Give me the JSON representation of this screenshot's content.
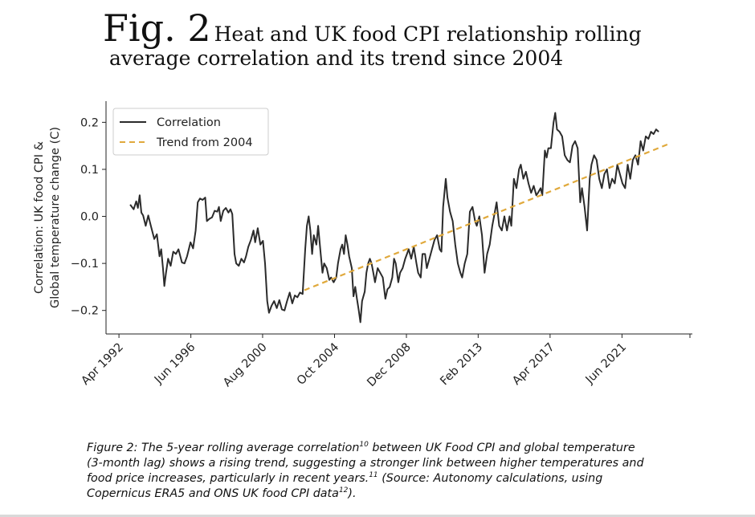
{
  "figure": {
    "label": "Fig. 2",
    "title_line1": "Heat and UK food CPI relationship rolling",
    "title_line2": "average correlation and its trend since 2004"
  },
  "caption": {
    "part1": "Figure 2: The 5-year rolling average correlation",
    "ref1": "10",
    "part2": " between UK Food CPI and global temperature (3-month lag) shows a rising trend, suggesting a stronger link between higher temperatures and food price increases, particularly in recent years.",
    "ref2": "11",
    "part3": " (Source: Autonomy calculations, using Copernicus ERA5 and ONS UK food CPI data",
    "ref3": "12",
    "part4": ")."
  },
  "chart_data": {
    "type": "line",
    "title": "",
    "xlabel": "",
    "ylabel_line1": "Correlation: UK food CPI &",
    "ylabel_line2": "Global temperature change (C)",
    "xlim": [
      1991.5,
      2025.5
    ],
    "ylim": [
      -0.25,
      0.245
    ],
    "yticks": [
      -0.2,
      -0.1,
      0.0,
      0.1,
      0.2
    ],
    "ytick_labels": [
      "−0.2",
      "−0.1",
      "0.0",
      "0.1",
      "0.2"
    ],
    "xticks": [
      1992.25,
      1996.42,
      2000.58,
      2004.75,
      2008.92,
      2013.08,
      2017.25,
      2021.42
    ],
    "xtick_labels": [
      "Apr 1992",
      "Jun 1996",
      "Aug 2000",
      "Oct 2004",
      "Dec 2008",
      "Feb 2013",
      "Apr 2017",
      "Jun 2021"
    ],
    "legend_position": "top-left",
    "series": [
      {
        "name": "Correlation",
        "color": "#2b2b2b",
        "style": "solid",
        "points": [
          [
            1992.9,
            0.025
          ],
          [
            1993.1,
            0.015
          ],
          [
            1993.25,
            0.032
          ],
          [
            1993.35,
            0.018
          ],
          [
            1993.45,
            0.045
          ],
          [
            1993.55,
            0.008
          ],
          [
            1993.65,
            0.002
          ],
          [
            1993.8,
            -0.02
          ],
          [
            1993.95,
            0.002
          ],
          [
            1994.1,
            -0.02
          ],
          [
            1994.3,
            -0.048
          ],
          [
            1994.45,
            -0.038
          ],
          [
            1994.6,
            -0.085
          ],
          [
            1994.7,
            -0.07
          ],
          [
            1994.8,
            -0.11
          ],
          [
            1994.88,
            -0.148
          ],
          [
            1994.98,
            -0.12
          ],
          [
            1995.1,
            -0.09
          ],
          [
            1995.25,
            -0.105
          ],
          [
            1995.4,
            -0.075
          ],
          [
            1995.55,
            -0.08
          ],
          [
            1995.7,
            -0.07
          ],
          [
            1995.9,
            -0.098
          ],
          [
            1996.05,
            -0.1
          ],
          [
            1996.2,
            -0.085
          ],
          [
            1996.4,
            -0.055
          ],
          [
            1996.55,
            -0.068
          ],
          [
            1996.7,
            -0.03
          ],
          [
            1996.82,
            0.03
          ],
          [
            1996.95,
            0.038
          ],
          [
            1997.1,
            0.035
          ],
          [
            1997.25,
            0.04
          ],
          [
            1997.35,
            -0.01
          ],
          [
            1997.5,
            -0.005
          ],
          [
            1997.65,
            -0.002
          ],
          [
            1997.8,
            0.012
          ],
          [
            1997.95,
            0.01
          ],
          [
            1998.05,
            0.02
          ],
          [
            1998.15,
            -0.01
          ],
          [
            1998.3,
            0.012
          ],
          [
            1998.45,
            0.018
          ],
          [
            1998.6,
            0.008
          ],
          [
            1998.72,
            0.015
          ],
          [
            1998.82,
            0.005
          ],
          [
            1998.95,
            -0.08
          ],
          [
            1999.05,
            -0.1
          ],
          [
            1999.2,
            -0.105
          ],
          [
            1999.35,
            -0.09
          ],
          [
            1999.5,
            -0.098
          ],
          [
            1999.62,
            -0.085
          ],
          [
            1999.75,
            -0.065
          ],
          [
            1999.9,
            -0.05
          ],
          [
            2000.05,
            -0.03
          ],
          [
            2000.15,
            -0.055
          ],
          [
            2000.3,
            -0.025
          ],
          [
            2000.45,
            -0.06
          ],
          [
            2000.6,
            -0.052
          ],
          [
            2000.72,
            -0.1
          ],
          [
            2000.85,
            -0.18
          ],
          [
            2000.95,
            -0.205
          ],
          [
            2001.1,
            -0.19
          ],
          [
            2001.25,
            -0.18
          ],
          [
            2001.4,
            -0.195
          ],
          [
            2001.55,
            -0.178
          ],
          [
            2001.7,
            -0.198
          ],
          [
            2001.85,
            -0.2
          ],
          [
            2002.0,
            -0.18
          ],
          [
            2002.15,
            -0.162
          ],
          [
            2002.3,
            -0.185
          ],
          [
            2002.45,
            -0.168
          ],
          [
            2002.6,
            -0.172
          ],
          [
            2002.75,
            -0.162
          ],
          [
            2002.9,
            -0.165
          ],
          [
            2003.05,
            -0.07
          ],
          [
            2003.15,
            -0.02
          ],
          [
            2003.25,
            0.0
          ],
          [
            2003.35,
            -0.03
          ],
          [
            2003.45,
            -0.08
          ],
          [
            2003.55,
            -0.04
          ],
          [
            2003.7,
            -0.06
          ],
          [
            2003.8,
            -0.02
          ],
          [
            2003.95,
            -0.08
          ],
          [
            2004.05,
            -0.12
          ],
          [
            2004.15,
            -0.1
          ],
          [
            2004.3,
            -0.11
          ],
          [
            2004.45,
            -0.135
          ],
          [
            2004.55,
            -0.13
          ],
          [
            2004.7,
            -0.14
          ],
          [
            2004.85,
            -0.13
          ],
          [
            2004.95,
            -0.1
          ],
          [
            2005.1,
            -0.07
          ],
          [
            2005.2,
            -0.06
          ],
          [
            2005.3,
            -0.08
          ],
          [
            2005.4,
            -0.04
          ],
          [
            2005.5,
            -0.06
          ],
          [
            2005.6,
            -0.085
          ],
          [
            2005.75,
            -0.11
          ],
          [
            2005.85,
            -0.17
          ],
          [
            2005.95,
            -0.15
          ],
          [
            2006.05,
            -0.175
          ],
          [
            2006.15,
            -0.198
          ],
          [
            2006.25,
            -0.225
          ],
          [
            2006.35,
            -0.18
          ],
          [
            2006.5,
            -0.16
          ],
          [
            2006.6,
            -0.12
          ],
          [
            2006.7,
            -0.1
          ],
          [
            2006.8,
            -0.09
          ],
          [
            2006.9,
            -0.1
          ],
          [
            2007.0,
            -0.12
          ],
          [
            2007.1,
            -0.14
          ],
          [
            2007.25,
            -0.11
          ],
          [
            2007.4,
            -0.12
          ],
          [
            2007.55,
            -0.13
          ],
          [
            2007.7,
            -0.175
          ],
          [
            2007.82,
            -0.155
          ],
          [
            2007.95,
            -0.15
          ],
          [
            2008.1,
            -0.13
          ],
          [
            2008.2,
            -0.09
          ],
          [
            2008.3,
            -0.1
          ],
          [
            2008.45,
            -0.14
          ],
          [
            2008.55,
            -0.12
          ],
          [
            2008.7,
            -0.11
          ],
          [
            2008.85,
            -0.09
          ],
          [
            2008.95,
            -0.08
          ],
          [
            2009.05,
            -0.07
          ],
          [
            2009.2,
            -0.09
          ],
          [
            2009.35,
            -0.065
          ],
          [
            2009.5,
            -0.1
          ],
          [
            2009.6,
            -0.12
          ],
          [
            2009.75,
            -0.13
          ],
          [
            2009.85,
            -0.08
          ],
          [
            2010.0,
            -0.08
          ],
          [
            2010.1,
            -0.11
          ],
          [
            2010.25,
            -0.09
          ],
          [
            2010.4,
            -0.07
          ],
          [
            2010.55,
            -0.05
          ],
          [
            2010.7,
            -0.04
          ],
          [
            2010.85,
            -0.07
          ],
          [
            2010.95,
            -0.075
          ],
          [
            2011.05,
            0.02
          ],
          [
            2011.2,
            0.08
          ],
          [
            2011.3,
            0.04
          ],
          [
            2011.45,
            0.01
          ],
          [
            2011.6,
            -0.01
          ],
          [
            2011.75,
            -0.06
          ],
          [
            2011.9,
            -0.1
          ],
          [
            2012.05,
            -0.12
          ],
          [
            2012.15,
            -0.13
          ],
          [
            2012.3,
            -0.1
          ],
          [
            2012.45,
            -0.08
          ],
          [
            2012.6,
            0.01
          ],
          [
            2012.75,
            0.02
          ],
          [
            2012.9,
            -0.01
          ],
          [
            2013.0,
            -0.02
          ],
          [
            2013.15,
            0.0
          ],
          [
            2013.3,
            -0.04
          ],
          [
            2013.45,
            -0.12
          ],
          [
            2013.6,
            -0.08
          ],
          [
            2013.75,
            -0.06
          ],
          [
            2013.9,
            -0.02
          ],
          [
            2014.0,
            0.0
          ],
          [
            2014.15,
            0.03
          ],
          [
            2014.3,
            -0.02
          ],
          [
            2014.45,
            -0.03
          ],
          [
            2014.6,
            0.0
          ],
          [
            2014.75,
            -0.03
          ],
          [
            2014.9,
            0.0
          ],
          [
            2015.0,
            -0.02
          ],
          [
            2015.15,
            0.08
          ],
          [
            2015.3,
            0.06
          ],
          [
            2015.45,
            0.1
          ],
          [
            2015.55,
            0.11
          ],
          [
            2015.7,
            0.08
          ],
          [
            2015.85,
            0.095
          ],
          [
            2016.0,
            0.07
          ],
          [
            2016.15,
            0.05
          ],
          [
            2016.3,
            0.065
          ],
          [
            2016.45,
            0.045
          ],
          [
            2016.55,
            0.05
          ],
          [
            2016.7,
            0.06
          ],
          [
            2016.8,
            0.045
          ],
          [
            2016.95,
            0.14
          ],
          [
            2017.05,
            0.125
          ],
          [
            2017.15,
            0.145
          ],
          [
            2017.3,
            0.145
          ],
          [
            2017.45,
            0.2
          ],
          [
            2017.55,
            0.22
          ],
          [
            2017.65,
            0.185
          ],
          [
            2017.8,
            0.18
          ],
          [
            2017.95,
            0.17
          ],
          [
            2018.1,
            0.13
          ],
          [
            2018.25,
            0.12
          ],
          [
            2018.4,
            0.115
          ],
          [
            2018.55,
            0.15
          ],
          [
            2018.7,
            0.16
          ],
          [
            2018.85,
            0.145
          ],
          [
            2019.0,
            0.03
          ],
          [
            2019.1,
            0.06
          ],
          [
            2019.25,
            0.02
          ],
          [
            2019.4,
            -0.03
          ],
          [
            2019.55,
            0.08
          ],
          [
            2019.65,
            0.11
          ],
          [
            2019.8,
            0.13
          ],
          [
            2019.95,
            0.12
          ],
          [
            2020.1,
            0.08
          ],
          [
            2020.25,
            0.06
          ],
          [
            2020.4,
            0.09
          ],
          [
            2020.55,
            0.1
          ],
          [
            2020.7,
            0.06
          ],
          [
            2020.85,
            0.08
          ],
          [
            2021.0,
            0.07
          ],
          [
            2021.15,
            0.11
          ],
          [
            2021.3,
            0.09
          ],
          [
            2021.45,
            0.07
          ],
          [
            2021.6,
            0.06
          ],
          [
            2021.75,
            0.11
          ],
          [
            2021.9,
            0.08
          ],
          [
            2022.05,
            0.12
          ],
          [
            2022.2,
            0.13
          ],
          [
            2022.35,
            0.11
          ],
          [
            2022.5,
            0.16
          ],
          [
            2022.65,
            0.14
          ],
          [
            2022.8,
            0.17
          ],
          [
            2022.95,
            0.165
          ],
          [
            2023.1,
            0.18
          ],
          [
            2023.25,
            0.175
          ],
          [
            2023.4,
            0.185
          ],
          [
            2023.55,
            0.18
          ]
        ]
      },
      {
        "name": "Trend from 2004",
        "color": "#e0a93c",
        "style": "dashed",
        "points": [
          [
            2003.0,
            -0.157
          ],
          [
            2024.2,
            0.155
          ]
        ]
      }
    ]
  }
}
